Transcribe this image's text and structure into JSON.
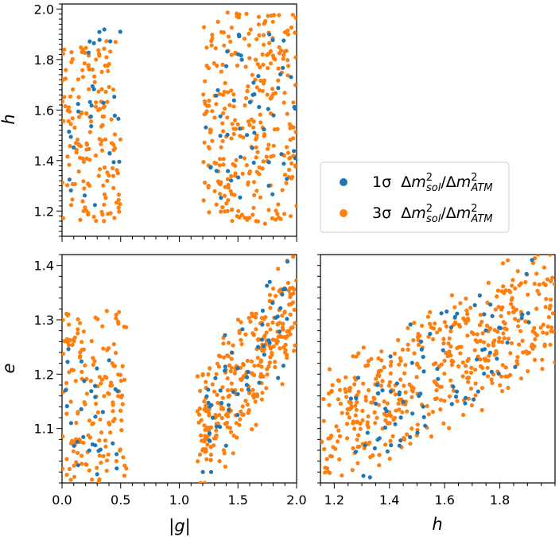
{
  "chart_data": {
    "type": "scatter",
    "figure_description_free": true,
    "colors": {
      "one_sigma": "#1f77b4",
      "three_sigma": "#ff7f0e"
    },
    "legend": {
      "placement": "middle-right",
      "entries": [
        {
          "key": "one_sigma",
          "prefix": "1σ",
          "label_tex": "Δm²_sol/Δm²_ATM"
        },
        {
          "key": "three_sigma",
          "prefix": "3σ",
          "label_tex": "Δm²_sol/Δm²_ATM"
        }
      ]
    },
    "panels": [
      {
        "id": "g-vs-h",
        "position": "top-left",
        "x_var": "g",
        "y_var": "h",
        "xlim": [
          0.0,
          2.0
        ],
        "ylim": [
          1.1,
          2.02
        ],
        "xticks": [],
        "yticks": [
          1.2,
          1.4,
          1.6,
          1.8,
          2.0
        ],
        "ytick_labels": [
          "1.2",
          "1.4",
          "1.6",
          "1.8",
          "2.0"
        ],
        "xlabel": "",
        "ylabel": "h",
        "clusters": [
          {
            "series": "three_sigma",
            "count": 160,
            "x": [
              0.0,
              0.5
            ],
            "y": [
              1.16,
              1.88
            ],
            "corr": 0.0
          },
          {
            "series": "three_sigma",
            "count": 300,
            "x": [
              1.2,
              2.0
            ],
            "y": [
              1.15,
              1.99
            ],
            "corr": 0.0
          },
          {
            "series": "one_sigma",
            "count": 30,
            "x": [
              0.02,
              0.5
            ],
            "y": [
              1.22,
              1.92
            ],
            "corr": 0.0
          },
          {
            "series": "one_sigma",
            "count": 55,
            "x": [
              1.22,
              2.0
            ],
            "y": [
              1.24,
              1.9
            ],
            "corr": 0.0
          }
        ]
      },
      {
        "id": "g-vs-e",
        "position": "bottom-left",
        "x_var": "g",
        "y_var": "e",
        "xlim": [
          0.0,
          2.0
        ],
        "ylim": [
          1.0,
          1.42
        ],
        "xticks": [
          0.0,
          0.5,
          1.0,
          1.5,
          2.0
        ],
        "xtick_labels": [
          "0.0",
          "0.5",
          "1.0",
          "1.5",
          "2.0"
        ],
        "yticks": [
          1.1,
          1.2,
          1.3,
          1.4
        ],
        "ytick_labels": [
          "1.1",
          "1.2",
          "1.3",
          "1.4"
        ],
        "xlabel": "|g|",
        "ylabel": "e",
        "clusters": [
          {
            "series": "three_sigma",
            "count": 160,
            "x": [
              0.0,
              0.55
            ],
            "y": [
              1.0,
              1.32
            ],
            "corr": 0.0
          },
          {
            "series": "three_sigma",
            "count": 300,
            "x": [
              1.15,
              2.0
            ],
            "y": [
              1.0,
              1.42
            ],
            "corr": 0.6
          },
          {
            "series": "one_sigma",
            "count": 30,
            "x": [
              0.02,
              0.5
            ],
            "y": [
              1.01,
              1.28
            ],
            "corr": 0.0
          },
          {
            "series": "one_sigma",
            "count": 55,
            "x": [
              1.2,
              1.95
            ],
            "y": [
              1.02,
              1.41
            ],
            "corr": 0.6
          }
        ]
      },
      {
        "id": "h-vs-e",
        "position": "bottom-right",
        "x_var": "h",
        "y_var": "e",
        "xlim": [
          1.15,
          2.0
        ],
        "ylim": [
          1.0,
          1.42
        ],
        "xticks": [
          1.2,
          1.4,
          1.6,
          1.8
        ],
        "xtick_labels": [
          "1.2",
          "1.4",
          "1.6",
          "1.8"
        ],
        "yticks": [],
        "xlabel": "h",
        "ylabel": "",
        "clusters": [
          {
            "series": "three_sigma",
            "count": 480,
            "x": [
              1.15,
              2.0
            ],
            "y": [
              1.0,
              1.42
            ],
            "corr": 0.55
          },
          {
            "series": "one_sigma",
            "count": 85,
            "x": [
              1.25,
              1.92
            ],
            "y": [
              1.0,
              1.41
            ],
            "corr": 0.55
          }
        ]
      }
    ]
  }
}
